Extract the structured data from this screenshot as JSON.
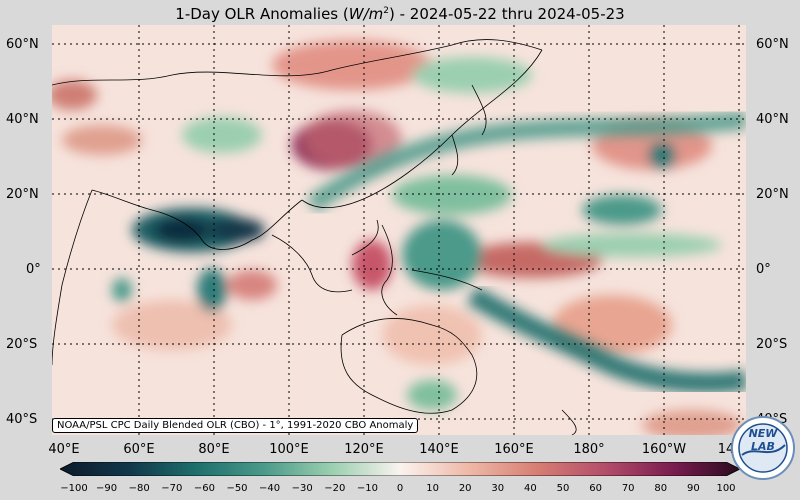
{
  "title_prefix": "1-Day OLR Anomalies (",
  "title_units": "W/m",
  "title_exp": "2",
  "title_suffix": ") - 2024-05-22 thru 2024-05-23",
  "lat_labels": [
    "60°N",
    "40°N",
    "20°N",
    "0°",
    "20°S",
    "40°S"
  ],
  "lon_labels": [
    "40°E",
    "60°E",
    "80°E",
    "100°E",
    "120°E",
    "140°E",
    "160°E",
    "180°",
    "160°W",
    "14"
  ],
  "source_box": "NOAA/PSL CPC Daily Blended OLR (CBO) - 1°, 1991-2020 CBO Anomaly",
  "colorbar_labels": [
    "−100",
    "−90",
    "−80",
    "−70",
    "−60",
    "−50",
    "−40",
    "−30",
    "−20",
    "−10",
    "0",
    "10",
    "20",
    "30",
    "40",
    "50",
    "60",
    "70",
    "80",
    "90",
    "100"
  ],
  "logo_text": "NEW LAB",
  "colors": {
    "negative_extreme": "#0b2a3c",
    "negative_strong": "#1e7a78",
    "negative_mild": "#7fbf9f",
    "neutral": "#faf3ef",
    "positive_mild": "#e8a591",
    "positive_strong": "#c65f5f",
    "positive_extreme": "#5a1038"
  }
}
